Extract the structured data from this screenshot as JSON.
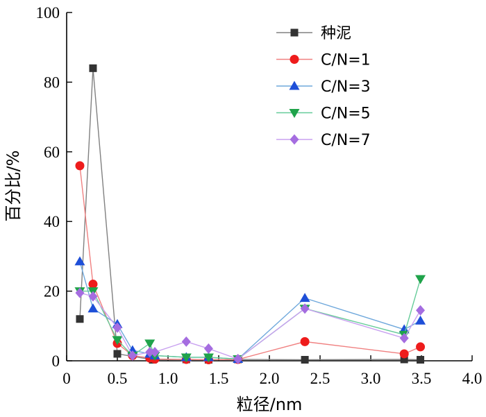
{
  "chart_data": {
    "type": "line",
    "title": "",
    "xlabel": "粒径/nm",
    "ylabel": "百分比/%",
    "xlim": [
      0,
      4.0
    ],
    "ylim": [
      0,
      100
    ],
    "xticks": [
      "0",
      "0.5",
      "1.0",
      "1.5",
      "2.0",
      "2.5",
      "3.0",
      "3.5",
      "4.0"
    ],
    "xtick_values": [
      0,
      0.5,
      1.0,
      1.5,
      2.0,
      2.5,
      3.0,
      3.5,
      4.0
    ],
    "yticks": [
      "0",
      "20",
      "40",
      "60",
      "80",
      "100"
    ],
    "ytick_values": [
      0,
      20,
      40,
      60,
      80,
      100
    ],
    "grid": false,
    "legend_position": "top-right",
    "series": [
      {
        "name": "种泥",
        "color": "#808080",
        "marker": "square",
        "marker_color": "#333333",
        "x": [
          0.13,
          0.26,
          0.5,
          0.85,
          1.18,
          1.4,
          1.69,
          2.35,
          3.33,
          3.49
        ],
        "y": [
          12,
          84,
          2,
          0.3,
          0.4,
          0.3,
          0.4,
          0.3,
          0.4,
          0.3
        ]
      },
      {
        "name": "C/N=1",
        "color": "#f08080",
        "marker": "circle",
        "marker_color": "#ee1c1c",
        "x": [
          0.13,
          0.26,
          0.5,
          0.65,
          0.82,
          0.87,
          1.18,
          1.4,
          1.69,
          2.35,
          3.33,
          3.49
        ],
        "y": [
          56,
          22,
          5,
          1.5,
          0.8,
          0.5,
          0.4,
          0.3,
          0.4,
          5.5,
          2,
          4
        ]
      },
      {
        "name": "C/N=3",
        "color": "#6fa8dc",
        "marker": "triangle-up",
        "marker_color": "#1e4fd8",
        "x": [
          0.13,
          0.26,
          0.5,
          0.65,
          0.82,
          0.87,
          1.18,
          1.4,
          1.69,
          2.35,
          3.33,
          3.49
        ],
        "y": [
          28.5,
          15,
          10.5,
          3,
          2,
          1.5,
          1,
          1,
          0.5,
          18,
          9,
          11.5
        ]
      },
      {
        "name": "C/N=5",
        "color": "#66cc99",
        "marker": "triangle-down",
        "marker_color": "#1fa34a",
        "x": [
          0.13,
          0.26,
          0.5,
          0.65,
          0.82,
          0.87,
          1.18,
          1.4,
          1.69,
          2.35,
          3.33,
          3.49
        ],
        "y": [
          20,
          20,
          6,
          1.5,
          5,
          1.5,
          1,
          1,
          0.5,
          15,
          7.5,
          23.5
        ]
      },
      {
        "name": "C/N=7",
        "color": "#c8a0f0",
        "marker": "diamond",
        "marker_color": "#a56de0",
        "x": [
          0.13,
          0.26,
          0.5,
          0.65,
          0.82,
          0.87,
          1.18,
          1.4,
          1.69,
          2.35,
          3.33,
          3.49
        ],
        "y": [
          19.5,
          18.5,
          9.5,
          1.5,
          2.5,
          2.5,
          5.5,
          3.5,
          0.5,
          15,
          6.5,
          14.5
        ]
      }
    ]
  }
}
